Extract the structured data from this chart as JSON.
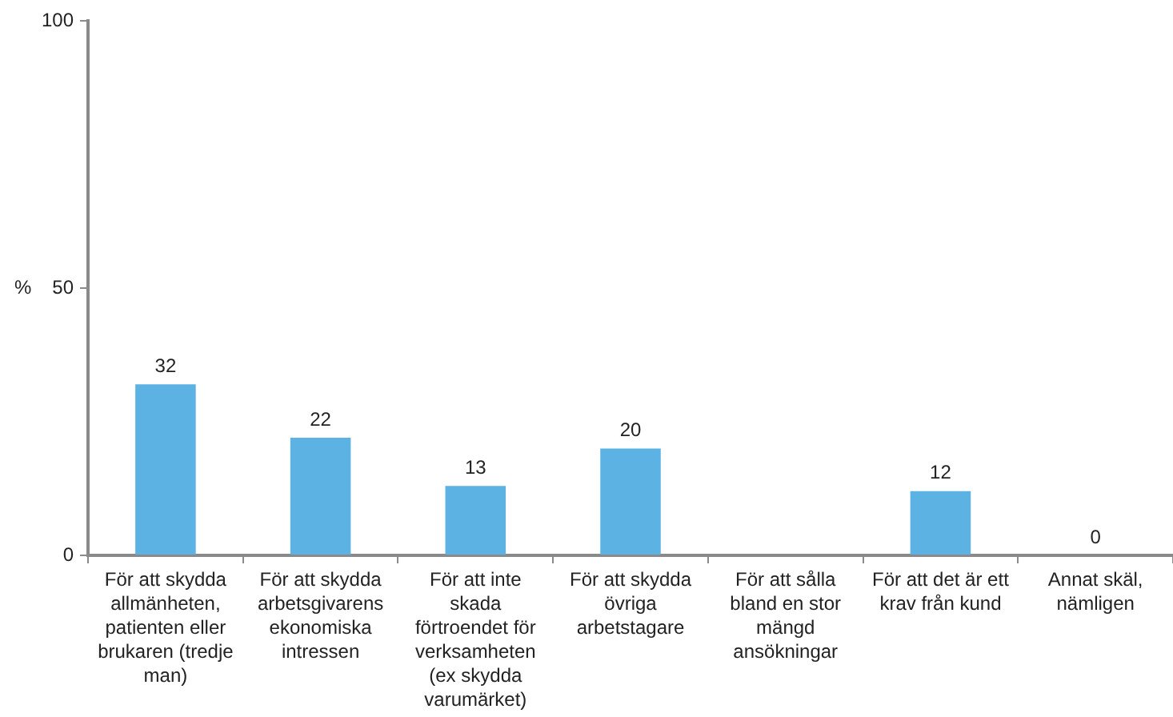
{
  "chart_data": {
    "type": "bar",
    "ylabel": "%",
    "categories": [
      "För att skydda allmänheten, patienten eller brukaren (tredje man)",
      "För att skydda arbetsgivarens ekonomiska intressen",
      "För att inte skada förtroendet för verksamheten (ex skydda varumärket)",
      "För att skydda övriga arbetstagare",
      "För att sålla bland en stor mängd ansökningar",
      "För att det är ett krav från kund",
      "Annat skäl, nämligen"
    ],
    "values": [
      32,
      22,
      13,
      20,
      null,
      12,
      0
    ],
    "value_labels": [
      "32",
      "22",
      "13",
      "20",
      null,
      "12",
      "0"
    ],
    "color": "#5cb3e3",
    "ylim": [
      0,
      100
    ],
    "yticks": [
      0,
      50,
      100
    ],
    "grid": false,
    "legend": false
  }
}
